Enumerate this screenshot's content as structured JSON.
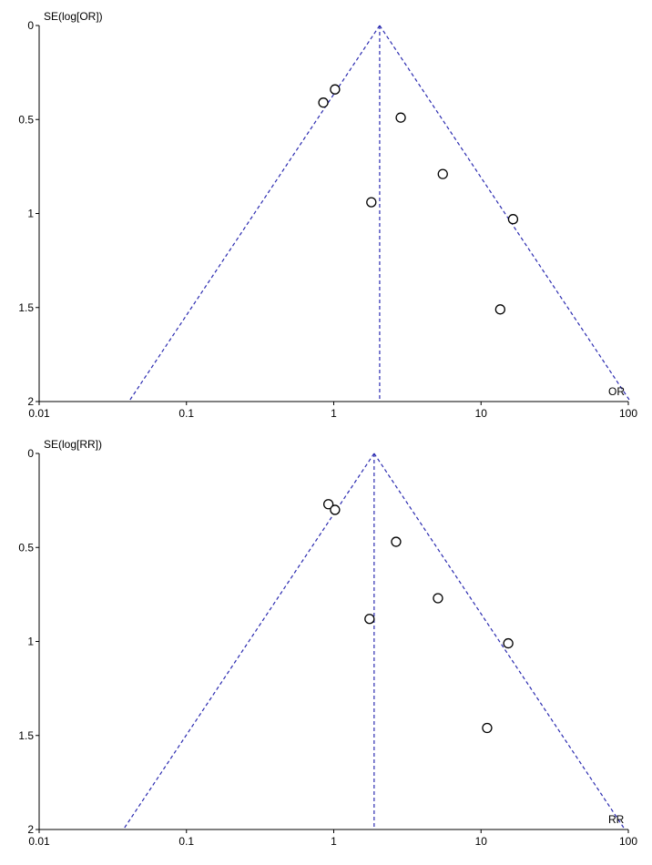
{
  "colors": {
    "funnel": "#2a2ab0",
    "axis": "#000000",
    "marker": "#000000",
    "background": "#ffffff"
  },
  "chart_data": [
    {
      "type": "scatter",
      "subtype": "funnel",
      "xscale": "log",
      "yaxis_inverted": true,
      "ylabel": "SE(log[OR])",
      "xlabel": "OR",
      "xlim": [
        0.01,
        100
      ],
      "ylim": [
        0,
        2
      ],
      "x_ticks": [
        "0.01",
        "0.1",
        "1",
        "10",
        "100"
      ],
      "y_ticks": [
        "0",
        "0.5",
        "1",
        "1.5",
        "2"
      ],
      "pooled_estimate": 2.05,
      "funnel_se_max": 2,
      "points": [
        {
          "x": 1.02,
          "y": 0.34
        },
        {
          "x": 0.85,
          "y": 0.41
        },
        {
          "x": 2.85,
          "y": 0.49
        },
        {
          "x": 5.5,
          "y": 0.79
        },
        {
          "x": 1.8,
          "y": 0.94
        },
        {
          "x": 16.5,
          "y": 1.03
        },
        {
          "x": 13.5,
          "y": 1.51
        }
      ]
    },
    {
      "type": "scatter",
      "subtype": "funnel",
      "xscale": "log",
      "yaxis_inverted": true,
      "ylabel": "SE(log[RR])",
      "xlabel": "RR",
      "xlim": [
        0.01,
        100
      ],
      "ylim": [
        0,
        2
      ],
      "x_ticks": [
        "0.01",
        "0.1",
        "1",
        "10",
        "100"
      ],
      "y_ticks": [
        "0",
        "0.5",
        "1",
        "1.5",
        "2"
      ],
      "pooled_estimate": 1.88,
      "funnel_se_max": 2,
      "points": [
        {
          "x": 0.92,
          "y": 0.27
        },
        {
          "x": 1.02,
          "y": 0.3
        },
        {
          "x": 2.65,
          "y": 0.47
        },
        {
          "x": 5.1,
          "y": 0.77
        },
        {
          "x": 1.75,
          "y": 0.88
        },
        {
          "x": 15.3,
          "y": 1.01
        },
        {
          "x": 11.0,
          "y": 1.46
        }
      ]
    }
  ]
}
